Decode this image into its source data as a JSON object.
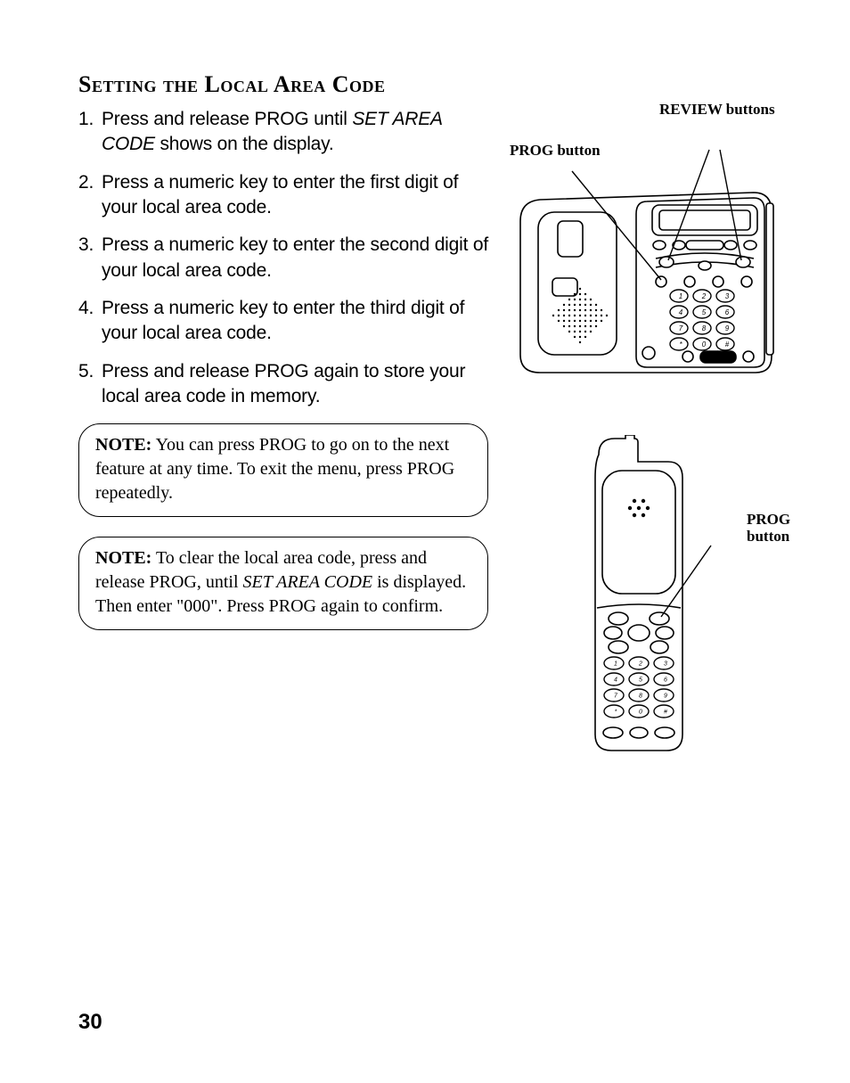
{
  "heading": "Setting the Local Area Code",
  "steps": [
    {
      "num": "1.",
      "pre": "Press and release PROG until ",
      "ital": "SET AREA CODE",
      "post": "  shows on the display."
    },
    {
      "num": "2.",
      "pre": "Press a numeric key to enter the first digit of your local area code.",
      "ital": "",
      "post": ""
    },
    {
      "num": "3.",
      "pre": "Press a numeric key to enter the second digit of your local area code.",
      "ital": "",
      "post": ""
    },
    {
      "num": "4.",
      "pre": "Press a numeric key to enter the third digit of your local area code.",
      "ital": "",
      "post": ""
    },
    {
      "num": "5.",
      "pre": "Press and release PROG again to store your local area code in memory.",
      "ital": "",
      "post": ""
    }
  ],
  "note1": {
    "label": "NOTE:",
    "text": " You can press PROG to go on to the next feature at any time. To exit the menu, press PROG repeatedly."
  },
  "note2": {
    "label": "NOTE:",
    "pre": " To clear the local area code, press and release PROG, until ",
    "ital": "SET AREA CODE",
    "post": " is displayed. Then enter \"000\". Press PROG again to confirm."
  },
  "callouts": {
    "review": "REVIEW buttons",
    "prog_base": "PROG button",
    "prog_hand_l1": "PROG",
    "prog_hand_l2": "button"
  },
  "page": "30",
  "keypad": {
    "rows": [
      [
        "1",
        "2",
        "3"
      ],
      [
        "4",
        "5",
        "6"
      ],
      [
        "7",
        "8",
        "9"
      ],
      [
        "*",
        "0",
        "#"
      ]
    ]
  },
  "colors": {
    "stroke": "#000000",
    "fill_bg": "#ffffff",
    "speaker_dot": "#000000"
  }
}
